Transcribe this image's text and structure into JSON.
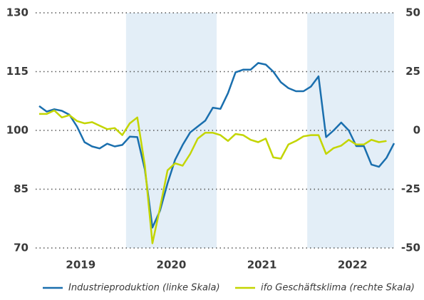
{
  "chart_data": {
    "type": "line",
    "years": [
      "2019",
      "2020",
      "2021",
      "2022"
    ],
    "shaded": [
      "2020",
      "2022"
    ],
    "ylim": [
      70,
      130
    ],
    "yticks": [
      70,
      85,
      100,
      115,
      130
    ],
    "y2lim": [
      -50,
      50
    ],
    "y2ticks": [
      -50,
      -25,
      0,
      25,
      50
    ],
    "grid": true,
    "series": [
      {
        "name": "Industrieproduktion (linke Skala)",
        "color": "#1a6fae",
        "axis": "y",
        "values": [
          106.2,
          104.8,
          105.4,
          105,
          104,
          101,
          97,
          95.9,
          95.4,
          96.6,
          95.9,
          96.3,
          98.4,
          98.3,
          90,
          75.2,
          79.5,
          86.5,
          92.5,
          96.3,
          99.5,
          101,
          102.5,
          105.8,
          105.5,
          109.5,
          114.8,
          115.5,
          115.5,
          117.2,
          116.8,
          115,
          112.3,
          110.8,
          110,
          110,
          111.2,
          113.8,
          98.3,
          100,
          102,
          100,
          96,
          96,
          91.3,
          90.7,
          93,
          96.7
        ]
      },
      {
        "name": "ifo Geschäftsklima (rechte Skala)",
        "color": "#c3d500",
        "axis": "y2",
        "values": [
          7,
          7,
          8.5,
          5.5,
          6.5,
          4,
          3,
          3.5,
          2,
          0.5,
          1,
          -2,
          3,
          5.5,
          -15,
          -48,
          -33,
          -17,
          -14,
          -15,
          -10,
          -3.5,
          -1,
          -1,
          -2,
          -4.5,
          -1.5,
          -2,
          -4,
          -5,
          -3.5,
          -11.5,
          -12,
          -6,
          -4.5,
          -2.5,
          -2,
          -2,
          -10,
          -7.5,
          -6.5,
          -4,
          -6,
          -6,
          -4,
          -5,
          -4.5,
          null
        ]
      }
    ]
  }
}
